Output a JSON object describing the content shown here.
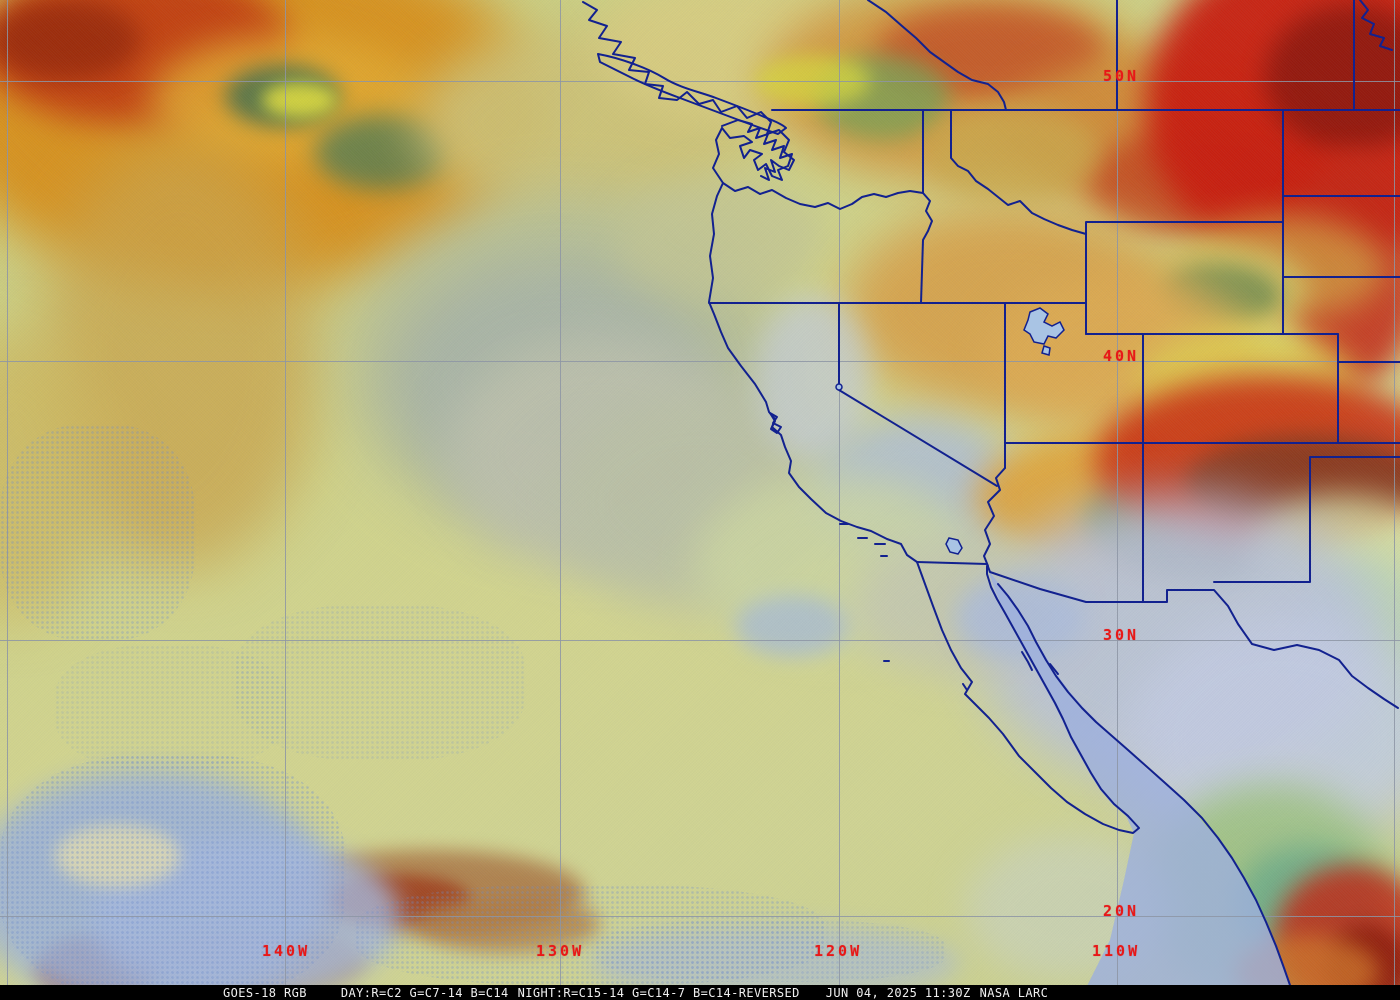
{
  "map_overlay": {
    "latitude_labels": [
      "50N",
      "40N",
      "30N",
      "20N"
    ],
    "longitude_labels": [
      "140W",
      "130W",
      "120W",
      "110W"
    ]
  },
  "status_bar": {
    "product": "GOES-18 RGB",
    "day_recipe": "DAY:R=C2 G=C7-14 B=C14",
    "night_recipe": "NIGHT:R=C15-14 G=C14-7 B=C14-REVERSED",
    "timestamp": "JUN 04, 2025 11:30Z",
    "credit": "NASA LARC"
  },
  "colors": {
    "latlon_grid": "#8d95a4",
    "latlon_label": "#e81818",
    "boundary": "#12218f",
    "gulf_water": "#9db0dd",
    "lake_water": "#a9c4e4",
    "bar_bg": "#000000",
    "bar_text": "#f0f0f0",
    "ocean_base": "#cdd185"
  }
}
